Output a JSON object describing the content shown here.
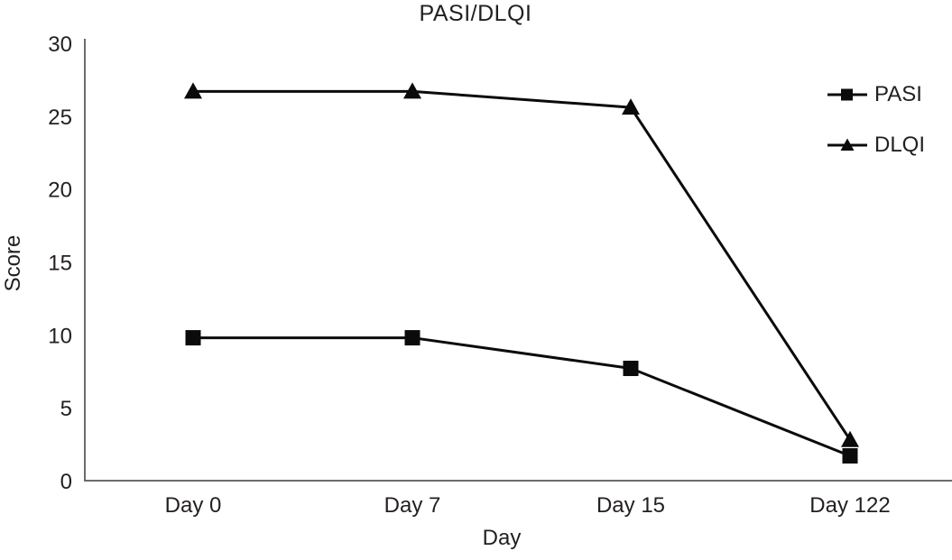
{
  "page": {
    "background": "#ffffff"
  },
  "chart_data": {
    "type": "line",
    "title": "PASI/DLQI",
    "xlabel": "Day",
    "ylabel": "Score",
    "categories": [
      "Day 0",
      "Day 7",
      "Day 15",
      "Day 122"
    ],
    "series": [
      {
        "name": "PASI",
        "marker": "square",
        "values": [
          9.8,
          9.8,
          7.7,
          1.7
        ]
      },
      {
        "name": "DLQI",
        "marker": "triangle",
        "values": [
          26.7,
          26.7,
          25.6,
          2.8
        ]
      }
    ],
    "ylim": [
      0,
      30
    ],
    "yticks": [
      0,
      5,
      10,
      15,
      20,
      25,
      30
    ],
    "grid": false,
    "legend_position": "right",
    "line_color": "#0b0b0b",
    "marker_color": "#0b0b0b",
    "axis_color": "#6b6b6b",
    "text_color": "#231f20"
  }
}
